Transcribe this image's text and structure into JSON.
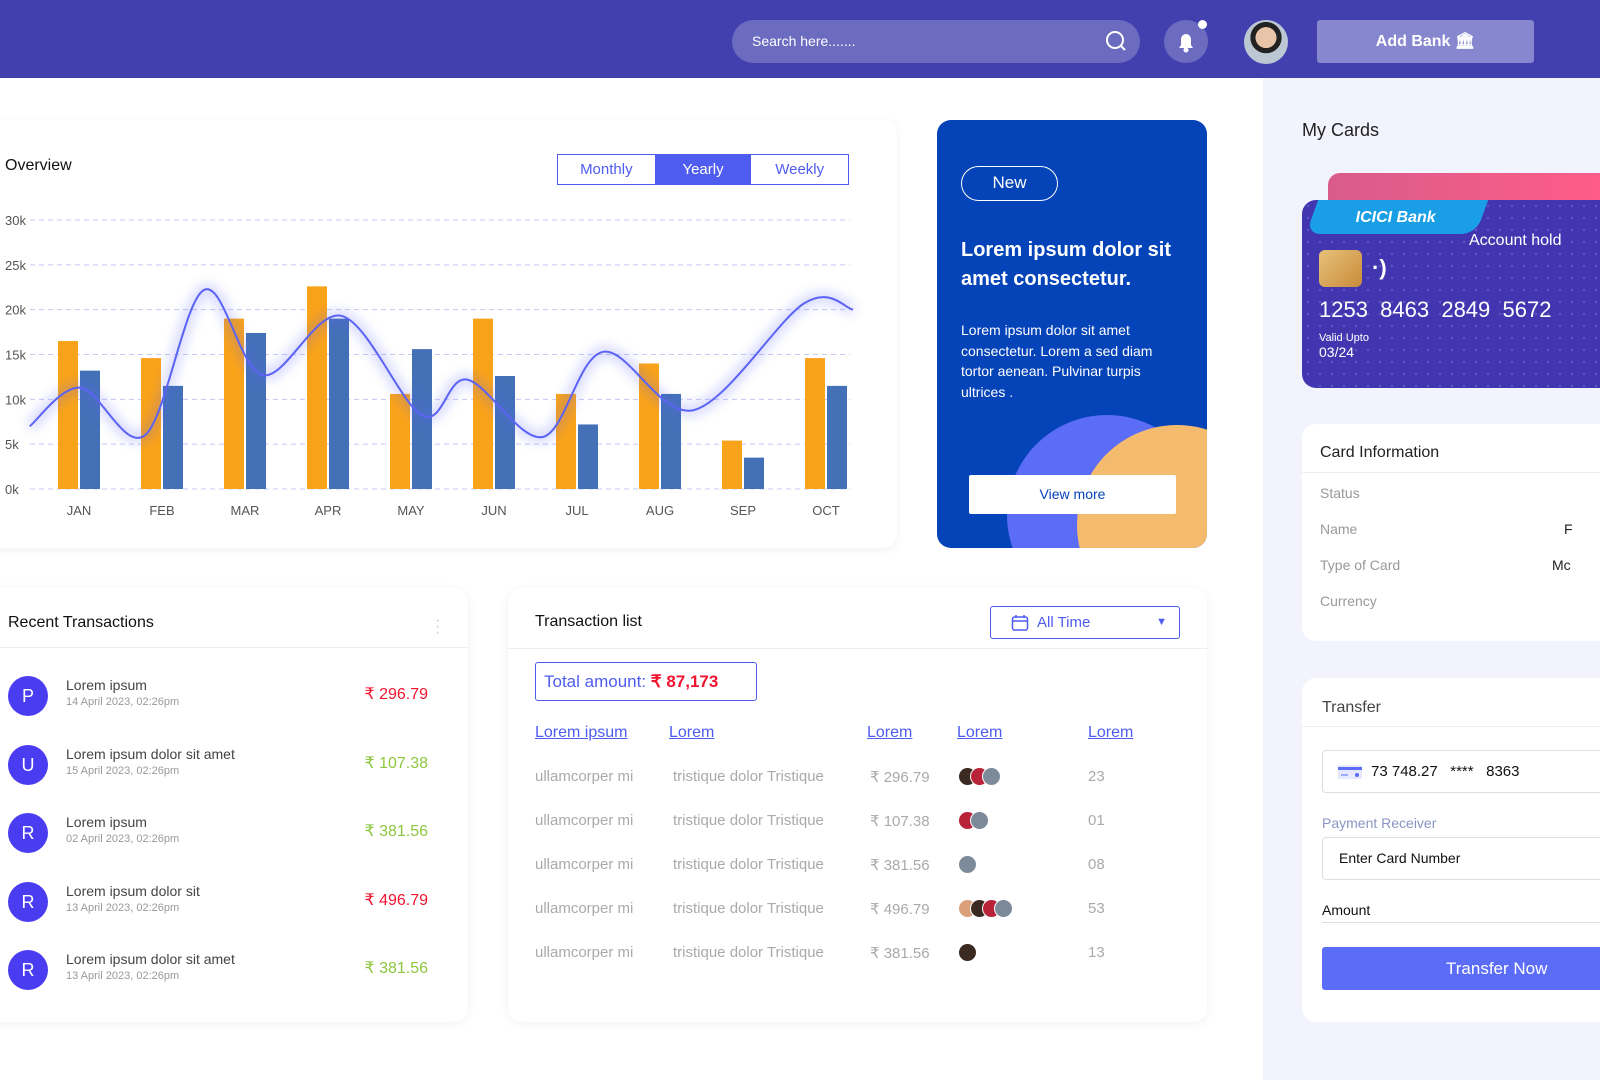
{
  "header": {
    "search_placeholder": "Search here.......",
    "add_bank_label": "Add Bank",
    "has_notification": true
  },
  "overview": {
    "title": "Overview",
    "tabs": [
      {
        "label": "Monthly",
        "active": false
      },
      {
        "label": "Yearly",
        "active": true
      },
      {
        "label": "Weekly",
        "active": false
      }
    ]
  },
  "chart_data": {
    "type": "bar",
    "categories": [
      "JAN",
      "FEB",
      "MAR",
      "APR",
      "MAY",
      "JUN",
      "JUL",
      "AUG",
      "SEP",
      "OCT"
    ],
    "ylim": [
      0,
      30000
    ],
    "yticks": [
      "0k",
      "5k",
      "10k",
      "15k",
      "20k",
      "25k",
      "30k"
    ],
    "grid": true,
    "series": [
      {
        "values": [
          16500,
          14600,
          19000,
          22600,
          10600,
          19000,
          10600,
          14000,
          5400,
          14600
        ],
        "color": "#f9a31a"
      },
      {
        "values": [
          13200,
          11500,
          17400,
          19000,
          15600,
          12600,
          7200,
          10600,
          3500,
          11500
        ],
        "color": "#4470b8"
      }
    ],
    "line": {
      "color": "#5b63f5",
      "points": [
        [
          -0.57,
          7000
        ],
        [
          0.04,
          11300
        ],
        [
          0.82,
          6000
        ],
        [
          1.53,
          22200
        ],
        [
          2.24,
          12700
        ],
        [
          3.19,
          19300
        ],
        [
          4.16,
          8200
        ],
        [
          4.7,
          12200
        ],
        [
          5.61,
          5800
        ],
        [
          6.34,
          15300
        ],
        [
          7.43,
          8800
        ],
        [
          8.76,
          20700
        ],
        [
          9.35,
          20000
        ]
      ]
    }
  },
  "promo": {
    "badge": "New",
    "heading": "Lorem ipsum dolor sit amet consectetur.",
    "body": "Lorem ipsum dolor sit amet consectetur. Lorem a sed diam tortor aenean. Pulvinar turpis ultrices .",
    "button": "View more"
  },
  "recent": {
    "title": "Recent Transactions",
    "items": [
      {
        "initial": "P",
        "name": "Lorem ipsum",
        "date": "14 April 2023, 02:26pm",
        "amount": "₹ 296.79",
        "color": "#f0142f"
      },
      {
        "initial": "U",
        "name": "Lorem ipsum dolor sit amet",
        "date": "15 April 2023, 02:26pm",
        "amount": "₹ 107.38",
        "color": "#8dc63f"
      },
      {
        "initial": "R",
        "name": "Lorem ipsum",
        "date": "02 April 2023, 02:26pm",
        "amount": "₹ 381.56",
        "color": "#8dc63f"
      },
      {
        "initial": "R",
        "name": "Lorem ipsum dolor sit",
        "date": "13 April 2023, 02:26pm",
        "amount": "₹ 496.79",
        "color": "#f0142f"
      },
      {
        "initial": "R",
        "name": "Lorem ipsum dolor sit amet",
        "date": "13 April 2023, 02:26pm",
        "amount": "₹ 381.56",
        "color": "#8dc63f"
      }
    ]
  },
  "tlist": {
    "title": "Transaction list",
    "filter": "All Time",
    "total_label": "Total amount:",
    "total_value": "₹ 87,173",
    "headers": [
      "Lorem ipsum",
      "Lorem",
      "Lorem",
      "Lorem",
      "Lorem"
    ],
    "rows": [
      {
        "c1": "ullamcorper mi",
        "c2": "tristique dolor Tristique",
        "amount": "₹ 296.79",
        "avatars": 3,
        "num": "23"
      },
      {
        "c1": "ullamcorper mi",
        "c2": "tristique dolor Tristique",
        "amount": "₹ 107.38",
        "avatars": 2,
        "num": "01"
      },
      {
        "c1": "ullamcorper mi",
        "c2": "tristique dolor Tristique",
        "amount": "₹ 381.56",
        "avatars": 1,
        "num": "08"
      },
      {
        "c1": "ullamcorper mi",
        "c2": "tristique dolor Tristique",
        "amount": "₹ 496.79",
        "avatars": 4,
        "num": "53"
      },
      {
        "c1": "ullamcorper mi",
        "c2": "tristique dolor Tristique",
        "amount": "₹ 381.56",
        "avatars": 1,
        "num": "13"
      }
    ]
  },
  "cards": {
    "title": "My Cards",
    "bank": "ICICI Bank",
    "holder_label": "Account hold",
    "number": "1253  8463  2849  5672",
    "valid_label": "Valid Upto",
    "valid": "03/24"
  },
  "card_info": {
    "title": "Card Information",
    "rows": [
      {
        "label": "Status",
        "value": ""
      },
      {
        "label": "Name",
        "value": "F"
      },
      {
        "label": "Type of Card",
        "value": "Mc"
      },
      {
        "label": "Currency",
        "value": ""
      }
    ]
  },
  "transfer": {
    "title": "Transfer",
    "card_balance": "73 748.27",
    "card_mask": "****",
    "card_last4": "8363",
    "receiver_label": "Payment Receiver",
    "receiver_placeholder": "Enter Card Number",
    "amount_label": "Amount",
    "button": "Transfer Now"
  }
}
